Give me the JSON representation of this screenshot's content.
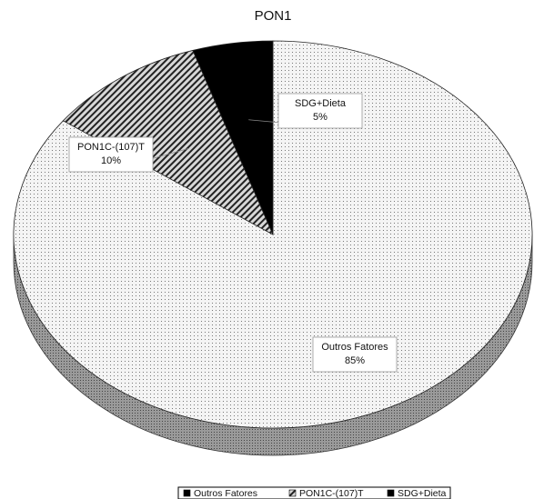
{
  "chart_data": {
    "type": "pie",
    "title": "PON1",
    "categories": [
      "Outros Fatores",
      "PON1C-(107)T",
      "SDG+Dieta"
    ],
    "values": [
      85,
      10,
      5
    ],
    "value_labels": [
      "85%",
      "10%",
      "5%"
    ],
    "colors": [
      "#f4f4f4",
      "#d8d8d8",
      "#000000"
    ],
    "legend": "bottom"
  }
}
